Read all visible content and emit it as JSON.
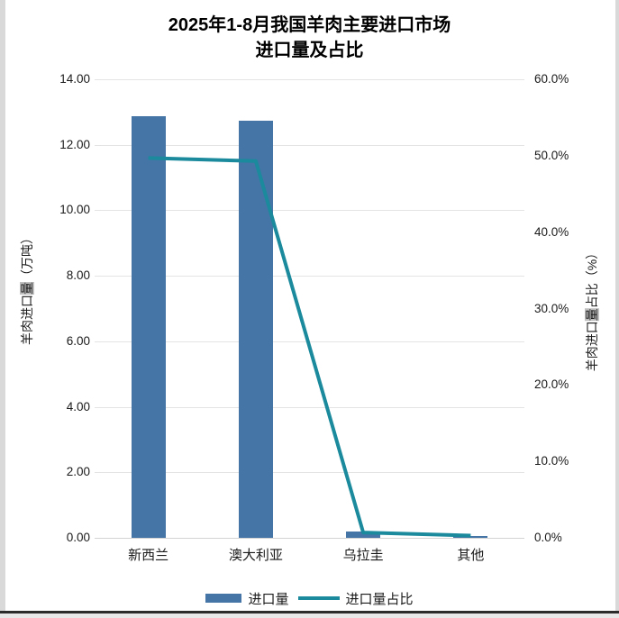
{
  "chart_data": {
    "type": "combo",
    "title_lines": [
      "2025年1-8月我国羊肉主要进口市场",
      "进口量及占比"
    ],
    "categories": [
      "新西兰",
      "澳大利亚",
      "乌拉圭",
      "其他"
    ],
    "series": [
      {
        "name": "进口量",
        "type": "bar",
        "axis": "left",
        "values": [
          12.86,
          12.73,
          0.19,
          0.06
        ],
        "color": "#4475a6"
      },
      {
        "name": "进口量占比",
        "type": "line",
        "axis": "right",
        "unit": "%",
        "values": [
          49.7,
          49.3,
          0.7,
          0.3
        ],
        "color": "#1b8a9c"
      }
    ],
    "left_axis": {
      "title_prefix": "羊肉进口",
      "title_highlight": "量",
      "title_suffix": "（万吨）",
      "min": 0,
      "max": 14,
      "step": 2,
      "tick_labels": [
        "0.00",
        "2.00",
        "4.00",
        "6.00",
        "8.00",
        "10.00",
        "12.00",
        "14.00"
      ]
    },
    "right_axis": {
      "title_prefix": "羊肉进口",
      "title_highlight": "量",
      "title_suffix": "占比（%）",
      "min": 0,
      "max": 60,
      "step": 10,
      "tick_labels": [
        "0.0%",
        "10.0%",
        "20.0%",
        "30.0%",
        "40.0%",
        "50.0%",
        "60.0%"
      ]
    },
    "legend": [
      "进口量",
      "进口量占比"
    ],
    "legend_position": "bottom",
    "grid": true,
    "colors": {
      "bar": "#4475a6",
      "line": "#1b8a9c",
      "gridline": "#e4e4e4",
      "axis_line": "#d3d3d3",
      "text": "#1a1a1a",
      "highlight_bg": "#bfbfbf"
    }
  }
}
